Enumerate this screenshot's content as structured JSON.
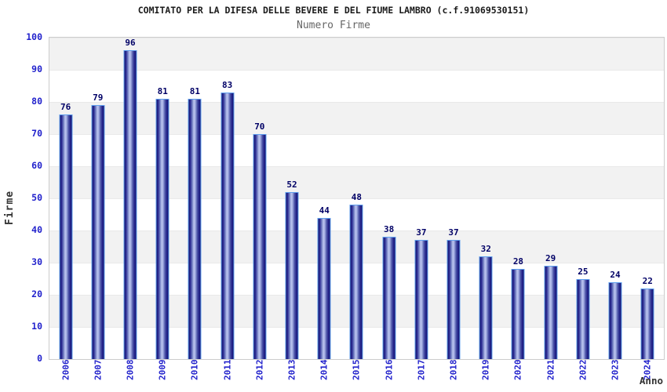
{
  "header": {
    "title": "COMITATO PER LA DIFESA DELLE BEVERE E DEL FIUME LAMBRO (c.f.91069530151)",
    "subtitle": "Numero Firme"
  },
  "axes": {
    "y_axis_label": "Firme",
    "x_axis_label": "Anno",
    "y_tick_labels": [
      "100",
      "90",
      "80",
      "70",
      "60",
      "50",
      "40",
      "30",
      "20",
      "10",
      "0"
    ]
  },
  "chart_data": {
    "type": "bar",
    "title": "COMITATO PER LA DIFESA DELLE BEVERE E DEL FIUME LAMBRO (c.f.91069530151)",
    "subtitle": "Numero Firme",
    "xlabel": "Anno",
    "ylabel": "Firme",
    "ylim": [
      0,
      100
    ],
    "y_tick_step": 10,
    "grid": "alternating horizontal bands, light gridline every 10 units",
    "legend_position": "none",
    "value_labels_shown": true,
    "categories": [
      "2006",
      "2007",
      "2008",
      "2009",
      "2010",
      "2011",
      "2012",
      "2013",
      "2014",
      "2015",
      "2016",
      "2017",
      "2018",
      "2019",
      "2020",
      "2021",
      "2022",
      "2023",
      "2024"
    ],
    "values": [
      76,
      79,
      96,
      81,
      81,
      83,
      70,
      52,
      44,
      48,
      38,
      37,
      37,
      32,
      28,
      29,
      25,
      24,
      22
    ]
  },
  "colors": {
    "bar_edge": "#15156e",
    "bar_center": "#bcc5f0",
    "bar_border": "#5f9fee",
    "tick_label_blue": "#2222cc",
    "value_label_navy": "#000066",
    "band_gray": "#f2f2f2",
    "band_white": "#ffffff",
    "plot_border": "#cccccc",
    "title_color": "#1a1a1a",
    "subtitle_color": "#666666",
    "axis_title_color": "#333333"
  }
}
